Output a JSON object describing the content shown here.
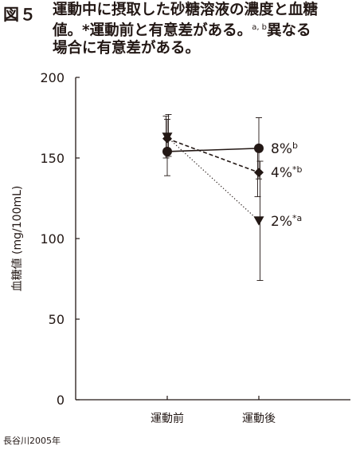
{
  "figure": {
    "label": "図５",
    "title_line1": "運動中に摂取した砂糖溶液の濃度と血糖",
    "title_line2_a": "値。*運動前と有意差がある。",
    "title_sup": "a, b",
    "title_line2_b": "異なる",
    "title_line3": "場合に有意差がある。",
    "source": "長谷川2005年"
  },
  "chart_data": {
    "type": "line",
    "categories": [
      "運動前",
      "運動後"
    ],
    "ylabel": "血糖値 (mg/100mL)",
    "ylim": [
      0,
      200
    ],
    "yticks": [
      0,
      50,
      100,
      150,
      200
    ],
    "grid": false,
    "series": [
      {
        "name": "8%",
        "sup": "b",
        "marker": "circle",
        "line": "solid",
        "values": [
          154,
          156
        ],
        "err_low": [
          139,
          137
        ],
        "err_high": [
          174,
          175
        ]
      },
      {
        "name": "4%",
        "sup": "*b",
        "marker": "diamond",
        "line": "dashed",
        "values": [
          162,
          141
        ],
        "err_low": [
          150,
          126
        ],
        "err_high": [
          176,
          157
        ]
      },
      {
        "name": "2%",
        "sup": "*a",
        "marker": "triangle",
        "line": "dotted",
        "values": [
          163,
          111
        ],
        "err_low": [
          151,
          74
        ],
        "err_high": [
          177,
          148
        ]
      }
    ]
  }
}
